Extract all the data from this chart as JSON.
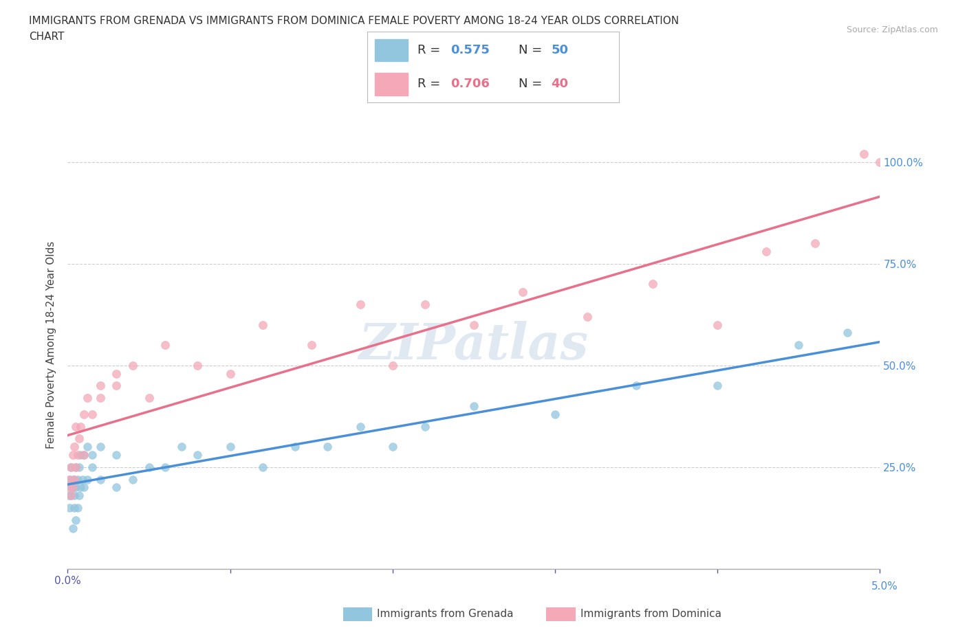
{
  "title_line1": "IMMIGRANTS FROM GRENADA VS IMMIGRANTS FROM DOMINICA FEMALE POVERTY AMONG 18-24 YEAR OLDS CORRELATION",
  "title_line2": "CHART",
  "source": "Source: ZipAtlas.com",
  "ylabel": "Female Poverty Among 18-24 Year Olds",
  "xlim": [
    0.0,
    0.05
  ],
  "ylim": [
    0.0,
    1.1
  ],
  "xtick_positions": [
    0.0,
    0.01,
    0.02,
    0.03,
    0.04,
    0.05
  ],
  "ytick_positions": [
    0.0,
    0.25,
    0.5,
    0.75,
    1.0
  ],
  "yticklabels_right": [
    "",
    "25.0%",
    "50.0%",
    "75.0%",
    "100.0%"
  ],
  "grenada_color": "#92c5de",
  "dominica_color": "#f4a8b8",
  "grenada_line_color": "#4a90d9",
  "dominica_line_color": "#e8708a",
  "grenada_R": 0.575,
  "grenada_N": 50,
  "dominica_R": 0.706,
  "dominica_N": 40,
  "watermark": "ZIPatlas",
  "background_color": "#ffffff",
  "grenada_scatter_x": [
    5e-05,
    0.0001,
    0.0001,
    0.0002,
    0.0002,
    0.0002,
    0.0003,
    0.0003,
    0.0003,
    0.0004,
    0.0004,
    0.0004,
    0.0005,
    0.0005,
    0.0005,
    0.0006,
    0.0006,
    0.0007,
    0.0007,
    0.0008,
    0.0008,
    0.0009,
    0.001,
    0.001,
    0.0012,
    0.0012,
    0.0015,
    0.0015,
    0.002,
    0.002,
    0.003,
    0.003,
    0.004,
    0.005,
    0.006,
    0.007,
    0.008,
    0.01,
    0.012,
    0.014,
    0.016,
    0.018,
    0.02,
    0.022,
    0.025,
    0.03,
    0.035,
    0.04,
    0.045,
    0.048
  ],
  "grenada_scatter_y": [
    0.18,
    0.22,
    0.15,
    0.2,
    0.18,
    0.25,
    0.1,
    0.2,
    0.22,
    0.15,
    0.18,
    0.22,
    0.12,
    0.2,
    0.25,
    0.15,
    0.22,
    0.18,
    0.25,
    0.2,
    0.28,
    0.22,
    0.2,
    0.28,
    0.22,
    0.3,
    0.25,
    0.28,
    0.22,
    0.3,
    0.2,
    0.28,
    0.22,
    0.25,
    0.25,
    0.3,
    0.28,
    0.3,
    0.25,
    0.3,
    0.3,
    0.35,
    0.3,
    0.35,
    0.4,
    0.38,
    0.45,
    0.45,
    0.55,
    0.58
  ],
  "dominica_scatter_x": [
    5e-05,
    0.0001,
    0.0002,
    0.0002,
    0.0003,
    0.0003,
    0.0004,
    0.0004,
    0.0005,
    0.0005,
    0.0006,
    0.0007,
    0.0008,
    0.001,
    0.001,
    0.0012,
    0.0015,
    0.002,
    0.002,
    0.003,
    0.003,
    0.004,
    0.005,
    0.006,
    0.008,
    0.01,
    0.012,
    0.015,
    0.018,
    0.02,
    0.022,
    0.025,
    0.028,
    0.032,
    0.036,
    0.04,
    0.043,
    0.046,
    0.049,
    0.05
  ],
  "dominica_scatter_y": [
    0.2,
    0.22,
    0.18,
    0.25,
    0.2,
    0.28,
    0.22,
    0.3,
    0.25,
    0.35,
    0.28,
    0.32,
    0.35,
    0.28,
    0.38,
    0.42,
    0.38,
    0.45,
    0.42,
    0.48,
    0.45,
    0.5,
    0.42,
    0.55,
    0.5,
    0.48,
    0.6,
    0.55,
    0.65,
    0.5,
    0.65,
    0.6,
    0.68,
    0.62,
    0.7,
    0.6,
    0.78,
    0.8,
    1.02,
    1.0
  ]
}
